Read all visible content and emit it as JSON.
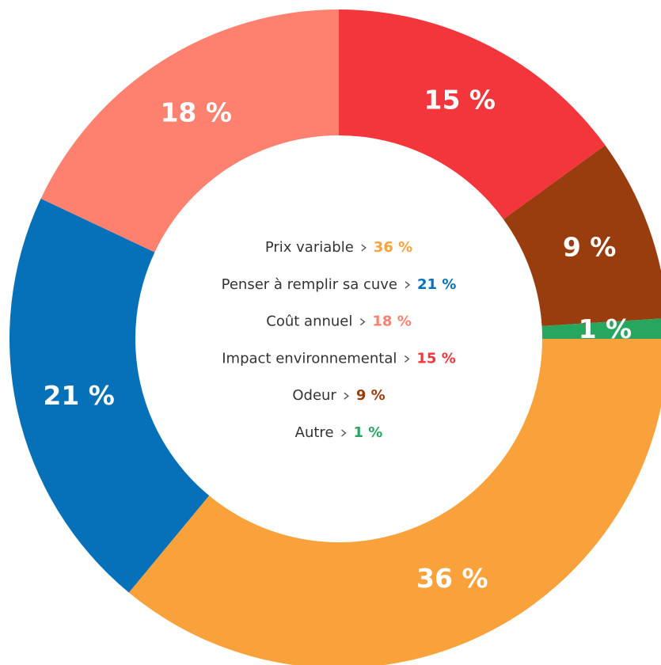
{
  "chart_data": {
    "type": "donut",
    "categories": [
      "Prix variable",
      "Penser à remplir sa cuve",
      "Coût annuel",
      "Impact environnemental",
      "Odeur",
      "Autre"
    ],
    "values": [
      36,
      21,
      18,
      15,
      9,
      1
    ],
    "value_labels": [
      "36 %",
      "21 %",
      "18 %",
      "15 %",
      "9 %",
      "1 %"
    ],
    "colors": [
      "#f9a13a",
      "#0670b8",
      "#fe8170",
      "#f2363b",
      "#9a3d0e",
      "#27a660"
    ],
    "legend": "center"
  }
}
